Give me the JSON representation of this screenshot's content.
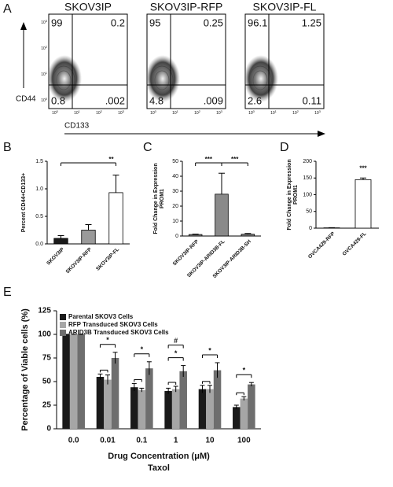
{
  "chart_data": [
    {
      "type": "flow",
      "panel": "A",
      "xlabel": "CD133",
      "ylabel": "CD44",
      "tick_base": "10",
      "tick_exponents": [
        "0",
        "1",
        "2",
        "3"
      ],
      "plots": [
        {
          "title": "SKOV3IP",
          "quadrants": [
            "99",
            "0.2",
            "0.8",
            ".002"
          ]
        },
        {
          "title": "SKOV3IP-RFP",
          "quadrants": [
            "95",
            "0.25",
            "4.8",
            ".009"
          ]
        },
        {
          "title": "SKOV3IP-FL",
          "quadrants": [
            "96.1",
            "1.25",
            "2.6",
            "0.11"
          ]
        }
      ]
    },
    {
      "type": "bar",
      "panel": "B",
      "ylabel": "Percent CD44+CD133+",
      "categories": [
        "SKOV3IP",
        "SKOV3IP-RFP",
        "SKOV3IP-FL"
      ],
      "values": [
        0.1,
        0.25,
        0.93
      ],
      "errors": [
        0.05,
        0.1,
        0.32
      ],
      "colors": [
        "#1a1a1a",
        "#9a9a9a",
        "#ffffff"
      ],
      "ylim": [
        0,
        1.5
      ],
      "yticks": [
        {
          "value": 0,
          "label": "0.0"
        },
        {
          "value": 0.5,
          "label": "0.5"
        },
        {
          "value": 1,
          "label": "1.0"
        },
        {
          "value": 1.5,
          "label": "1.5"
        }
      ],
      "annotations": [
        "**"
      ]
    },
    {
      "type": "bar",
      "panel": "C",
      "ylabel": [
        "Fold Change in Expression",
        "PROM1"
      ],
      "categories": [
        "SKOV3IP-RFP",
        "SKOV3IP-ARID3B-FL",
        "SKOV3IP-ARID3B-SH"
      ],
      "values": [
        1,
        28,
        1.2
      ],
      "errors": [
        0.3,
        14,
        0.5
      ],
      "colors": [
        "#8a8a8a",
        "#8a8a8a",
        "#8a8a8a"
      ],
      "ylim": [
        0,
        50
      ],
      "yticks": [
        0,
        10,
        20,
        30,
        40,
        50
      ],
      "annotations": [
        "***",
        "***"
      ]
    },
    {
      "type": "bar",
      "panel": "D",
      "ylabel": [
        "Fold Change in Expression",
        "PROM1"
      ],
      "categories": [
        "OVCA429-RFP",
        "OVCA429-FL"
      ],
      "values": [
        1,
        145
      ],
      "errors": [
        0.5,
        5
      ],
      "colors": [
        "#ffffff",
        "#ffffff"
      ],
      "ylim": [
        0,
        200
      ],
      "yticks": [
        0,
        50,
        100,
        150,
        200
      ],
      "annotations": [
        "***"
      ]
    },
    {
      "type": "grouped_bar",
      "panel": "E",
      "ylabel": "Percentage of Viable cells (%)",
      "xlabel": "Drug Concentration (μM)",
      "xlabel2": "Taxol",
      "categories": [
        "0.0",
        "0.01",
        "0.1",
        "1",
        "10",
        "100"
      ],
      "series": [
        {
          "name": "Parental SKOV3 Cells",
          "color": "#1a1a1a",
          "values": [
            100,
            55,
            44,
            40,
            42,
            23
          ],
          "errors": [
            0,
            3,
            4,
            3,
            4,
            2
          ]
        },
        {
          "name": "RFP Transduced SKOV3 Cells",
          "color": "#a6a6a6",
          "values": [
            100,
            52,
            41,
            42,
            42,
            32
          ],
          "errors": [
            0,
            5,
            2,
            3,
            4,
            2
          ]
        },
        {
          "name": "ARID3B Transduced SKOV3 Cells",
          "color": "#6e6e6e",
          "values": [
            100,
            75,
            64,
            61,
            62,
            47
          ],
          "errors": [
            0,
            6,
            7,
            6,
            8,
            2
          ]
        }
      ],
      "ylim": [
        0,
        125
      ],
      "yticks": [
        0,
        25,
        50,
        75,
        100,
        125
      ],
      "annotations": [
        "*",
        "*",
        "#",
        "*",
        "*",
        "*"
      ]
    }
  ]
}
